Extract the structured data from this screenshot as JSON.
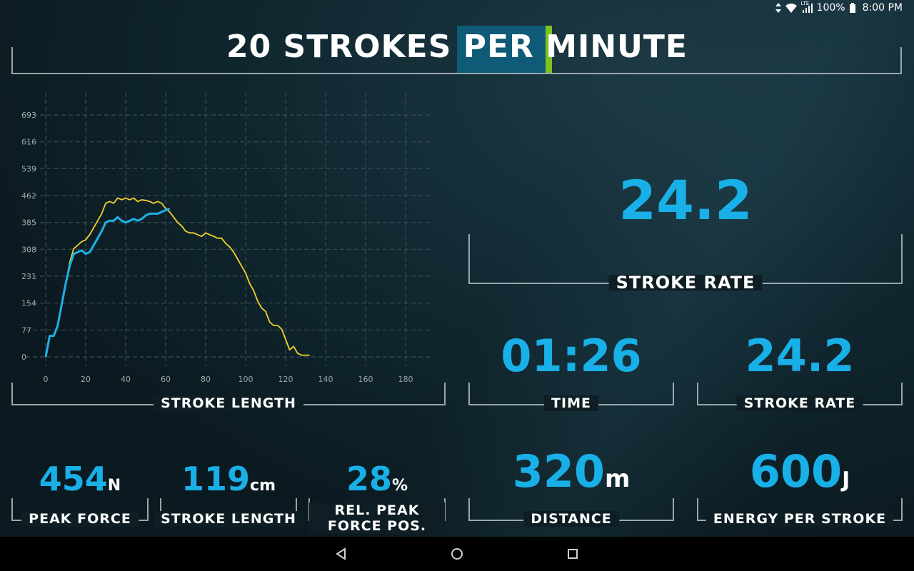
{
  "status": {
    "battery": "100%",
    "time": "8:00 PM",
    "signal": "LTE"
  },
  "header": {
    "title": "20 STROKES PER MINUTE"
  },
  "chart_data": {
    "type": "line",
    "title": "",
    "xlabel": "STROKE LENGTH",
    "ylabel": "",
    "xlim": [
      0,
      180
    ],
    "ylim": [
      0,
      693
    ],
    "x_ticks": [
      0,
      20,
      40,
      60,
      80,
      100,
      120,
      140,
      160,
      180
    ],
    "y_ticks": [
      0,
      77,
      154,
      231,
      308,
      385,
      462,
      539,
      616,
      693
    ],
    "grid": true,
    "series": [
      {
        "color": "#f2d22e",
        "x": [
          0,
          2,
          4,
          6,
          8,
          10,
          12,
          14,
          16,
          18,
          20,
          22,
          24,
          26,
          28,
          30,
          32,
          34,
          36,
          38,
          40,
          42,
          44,
          46,
          48,
          50,
          52,
          54,
          56,
          58,
          60,
          62,
          64,
          66,
          68,
          70,
          72,
          74,
          76,
          78,
          80,
          82,
          84,
          86,
          88,
          90,
          92,
          94,
          96,
          98,
          100,
          102,
          104,
          106,
          108,
          110,
          112,
          114,
          116,
          118,
          120,
          122,
          124,
          126,
          128,
          130,
          132
        ],
        "values": [
          0,
          60,
          60,
          90,
          150,
          210,
          270,
          310,
          320,
          330,
          335,
          350,
          370,
          390,
          410,
          440,
          445,
          440,
          455,
          450,
          455,
          450,
          455,
          445,
          450,
          448,
          445,
          440,
          445,
          440,
          425,
          415,
          400,
          385,
          375,
          360,
          355,
          355,
          350,
          345,
          355,
          350,
          345,
          340,
          340,
          325,
          315,
          300,
          280,
          260,
          240,
          210,
          190,
          160,
          140,
          130,
          100,
          90,
          90,
          80,
          50,
          20,
          30,
          10,
          5,
          5,
          5
        ]
      },
      {
        "color": "#1fb0e6",
        "x": [
          0,
          2,
          4,
          6,
          8,
          10,
          12,
          14,
          16,
          18,
          20,
          22,
          24,
          26,
          28,
          30,
          32,
          34,
          36,
          38,
          40,
          42,
          44,
          46,
          48,
          50,
          52,
          54,
          56,
          58,
          60,
          62
        ],
        "values": [
          0,
          60,
          60,
          90,
          150,
          210,
          260,
          295,
          300,
          305,
          295,
          300,
          320,
          340,
          360,
          385,
          390,
          390,
          400,
          390,
          385,
          390,
          395,
          390,
          395,
          405,
          410,
          410,
          410,
          415,
          420,
          425
        ]
      }
    ]
  },
  "panels": {
    "chart_label": "STROKE LENGTH",
    "stroke_rate_big": {
      "value": "24.2",
      "label": "STROKE RATE"
    },
    "time": {
      "value": "01:26",
      "label": "TIME"
    },
    "stroke_rate_small": {
      "value": "24.2",
      "label": "STROKE RATE"
    },
    "peak_force": {
      "value": "454",
      "unit": "N",
      "label": "PEAK FORCE"
    },
    "stroke_length": {
      "value": "119",
      "unit": "cm",
      "label": "STROKE LENGTH"
    },
    "rel_peak_force": {
      "value": "28",
      "unit": "%",
      "label": "REL. PEAK FORCE POS."
    },
    "distance": {
      "value": "320",
      "unit": "m",
      "label": "DISTANCE"
    },
    "energy": {
      "value": "600",
      "unit": "J",
      "label": "ENERGY PER STROKE"
    }
  },
  "icons": {
    "back": "back-triangle-icon",
    "home": "home-circle-icon",
    "recents": "recents-square-icon",
    "wifi": "wifi-icon",
    "battery": "battery-icon"
  }
}
